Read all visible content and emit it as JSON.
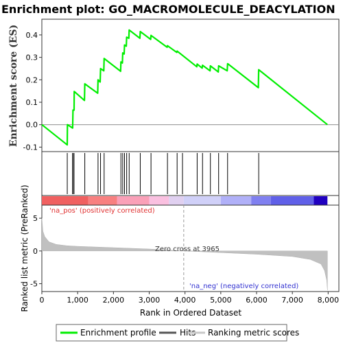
{
  "chart_data": {
    "type": "line",
    "title": "Enrichment plot: GO_MACROMOLECULE_DEACYLATION",
    "xlabel": "Rank in Ordered Dataset",
    "es_ylabel": "Enrichment score (ES)",
    "metric_ylabel": "Ranked list metric (PreRanked)",
    "xlim": [
      0,
      8300
    ],
    "x_ticks": [
      0,
      1000,
      2000,
      3000,
      4000,
      5000,
      6000,
      7000,
      8000
    ],
    "x_tick_labels": [
      "0",
      "1,000",
      "2,000",
      "3,000",
      "4,000",
      "5,000",
      "6,000",
      "7,000",
      "8,000"
    ],
    "es_ylim": [
      -0.12,
      0.47
    ],
    "es_ticks": [
      -0.1,
      0.0,
      0.1,
      0.2,
      0.3,
      0.4
    ],
    "es_tick_labels": [
      "-0.1",
      "0.0",
      "0.1",
      "0.2",
      "0.3",
      "0.4"
    ],
    "metric_ylim": [
      -6.2,
      7
    ],
    "metric_ticks": [
      -5,
      0,
      5
    ],
    "metric_tick_labels": [
      "-5",
      "0",
      "5"
    ],
    "enrichment_profile": {
      "name": "Enrichment profile",
      "color": "#00ee00",
      "points": [
        [
          0,
          0
        ],
        [
          710,
          -0.09
        ],
        [
          715,
          0.0
        ],
        [
          860,
          -0.015
        ],
        [
          870,
          0.065
        ],
        [
          900,
          0.065
        ],
        [
          905,
          0.148
        ],
        [
          1190,
          0.108
        ],
        [
          1200,
          0.182
        ],
        [
          1560,
          0.14
        ],
        [
          1570,
          0.2
        ],
        [
          1630,
          0.19
        ],
        [
          1640,
          0.25
        ],
        [
          1730,
          0.24
        ],
        [
          1740,
          0.295
        ],
        [
          2200,
          0.238
        ],
        [
          2210,
          0.28
        ],
        [
          2250,
          0.275
        ],
        [
          2260,
          0.32
        ],
        [
          2300,
          0.315
        ],
        [
          2310,
          0.355
        ],
        [
          2360,
          0.35
        ],
        [
          2370,
          0.39
        ],
        [
          2430,
          0.385
        ],
        [
          2440,
          0.422
        ],
        [
          2740,
          0.385
        ],
        [
          2750,
          0.415
        ],
        [
          3040,
          0.38
        ],
        [
          3050,
          0.398
        ],
        [
          3500,
          0.345
        ],
        [
          3510,
          0.352
        ],
        [
          3770,
          0.322
        ],
        [
          3780,
          0.328
        ],
        [
          4330,
          0.258
        ],
        [
          4340,
          0.27
        ],
        [
          4480,
          0.252
        ],
        [
          4490,
          0.265
        ],
        [
          4700,
          0.24
        ],
        [
          4710,
          0.262
        ],
        [
          4930,
          0.235
        ],
        [
          4940,
          0.262
        ],
        [
          5180,
          0.24
        ],
        [
          5190,
          0.272
        ],
        [
          6050,
          0.165
        ],
        [
          6060,
          0.245
        ],
        [
          7980,
          0.0
        ]
      ]
    },
    "hits": {
      "name": "Hits",
      "color": "#000000",
      "ranks": [
        710,
        860,
        870,
        900,
        1200,
        1570,
        1640,
        1740,
        2210,
        2260,
        2310,
        2370,
        2440,
        2750,
        3050,
        3510,
        3780,
        3930,
        4340,
        4490,
        4710,
        4940,
        5190,
        6060
      ]
    },
    "ranking_metric": {
      "name": "Ranking metric scores",
      "color": "#c0c0c0",
      "total": 7980,
      "profile": [
        [
          0,
          5.0
        ],
        [
          30,
          3.0
        ],
        [
          80,
          2.2
        ],
        [
          200,
          1.4
        ],
        [
          400,
          1.0
        ],
        [
          700,
          0.8
        ],
        [
          1000,
          0.7
        ],
        [
          2000,
          0.5
        ],
        [
          3000,
          0.3
        ],
        [
          3965,
          0.0
        ],
        [
          5000,
          -0.25
        ],
        [
          6000,
          -0.5
        ],
        [
          7000,
          -0.85
        ],
        [
          7500,
          -1.3
        ],
        [
          7800,
          -2.0
        ],
        [
          7900,
          -3.0
        ],
        [
          7960,
          -4.5
        ],
        [
          7980,
          -6.0
        ]
      ]
    },
    "heatmap_bar": {
      "colors": [
        "#f06060",
        "#f88080",
        "#faa0b8",
        "#fac0e0",
        "#e0d0f0",
        "#d0d0f8",
        "#b0b0f8",
        "#8080f0",
        "#6060e8",
        "#2000c0"
      ],
      "breaks": [
        0,
        1300,
        2100,
        3000,
        3550,
        3965,
        5000,
        5850,
        6400,
        7600,
        7980
      ]
    },
    "zero_cross": 3965,
    "annotations": {
      "positive": "'na_pos' (positively correlated)",
      "negative": "'na_neg' (negatively correlated)",
      "zero_cross": "Zero cross at 3965"
    },
    "legend": {
      "placement": "bottom",
      "entries": [
        "Enrichment profile",
        "Hits",
        "Ranking metric scores"
      ]
    }
  }
}
